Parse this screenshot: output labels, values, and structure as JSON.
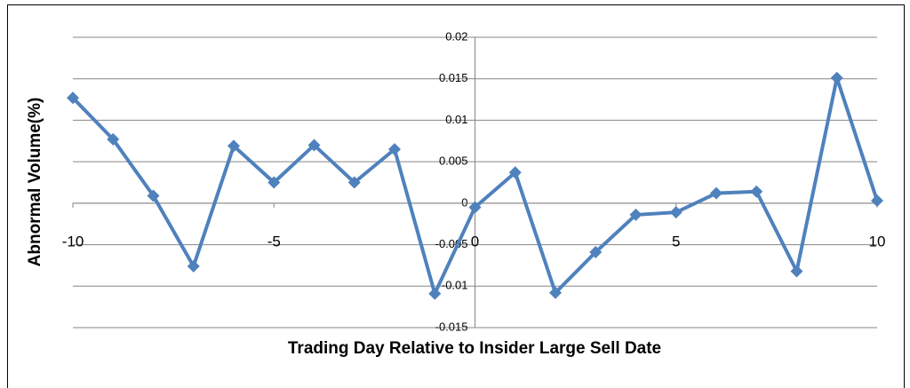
{
  "chart_data": {
    "type": "line",
    "x_label": "Trading Day Relative to Insider Large Sell Date",
    "y_label": "Abnormal Volume(%)",
    "x": [
      -10,
      -9,
      -8,
      -7,
      -6,
      -5,
      -4,
      -3,
      -2,
      -1,
      0,
      1,
      2,
      3,
      4,
      5,
      6,
      7,
      8,
      9,
      10
    ],
    "series": [
      {
        "color": "#4f81bd",
        "values": [
          0.0127,
          0.0077,
          0.0009,
          -0.0076,
          0.0069,
          0.0025,
          0.007,
          0.0025,
          0.0065,
          -0.0109,
          -0.0005,
          0.0037,
          -0.0108,
          -0.0059,
          -0.0014,
          -0.0011,
          0.0012,
          0.0014,
          -0.0082,
          0.0151,
          0.0003
        ]
      }
    ],
    "xlim": [
      -10,
      10
    ],
    "xticks": [
      -10,
      -5,
      0,
      5,
      10
    ],
    "ylim": [
      -0.015,
      0.02
    ],
    "yticks": [
      -0.015,
      -0.01,
      -0.005,
      0,
      0.005,
      0.01,
      0.015,
      0.02
    ],
    "grid": true,
    "marker": "diamond"
  }
}
